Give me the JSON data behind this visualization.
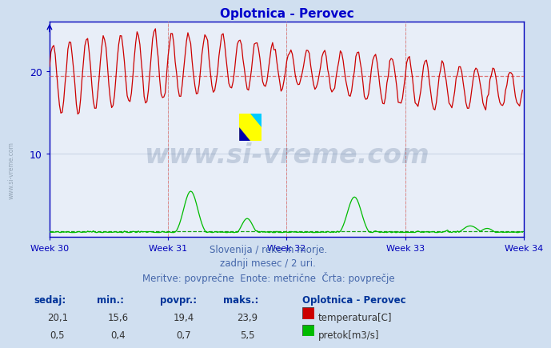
{
  "title": "Oplotnica - Perovec",
  "title_color": "#0000cc",
  "background_color": "#d0dff0",
  "plot_bg_color": "#e8eef8",
  "grid_color": "#b8c8dc",
  "axis_color": "#0000bb",
  "tick_color": "#0000bb",
  "xlabel_weeks": [
    "Week 30",
    "Week 31",
    "Week 32",
    "Week 33",
    "Week 34"
  ],
  "week_positions": [
    0,
    84,
    168,
    252,
    336
  ],
  "xlim": [
    0,
    336
  ],
  "ylim": [
    0,
    26
  ],
  "yticks": [
    10,
    20
  ],
  "temp_min": 15.6,
  "temp_max": 23.9,
  "temp_avg": 19.4,
  "temp_current": 20.1,
  "flow_min": 0.4,
  "flow_max": 5.5,
  "flow_avg": 0.7,
  "flow_current": 0.5,
  "temp_color": "#cc0000",
  "flow_color": "#00bb00",
  "avg_line_color": "#dd6666",
  "flow_avg_color": "#009900",
  "vline_color": "#dd8888",
  "subtitle1": "Slovenija / reke in morje.",
  "subtitle2": "zadnji mesec / 2 uri.",
  "subtitle3": "Meritve: povprečne  Enote: metrične  Črta: povprečje",
  "subtitle_color": "#4466aa",
  "legend_title": "Oplotnica - Perovec",
  "label_sedaj": "sedaj:",
  "label_min": "min.:",
  "label_povpr": "povpr.:",
  "label_maks": "maks.:",
  "label_temperatura": "temperatura[C]",
  "label_pretok": "pretok[m3/s]",
  "watermark_text": "www.si-vreme.com",
  "watermark_color": "#1a3a6a",
  "watermark_alpha": 0.18,
  "watermark_fontsize": 24,
  "n_points": 336,
  "period": 12,
  "side_watermark": "www.si-vreme.com",
  "side_watermark_color": "#8899aa",
  "col_color": "#003399",
  "val_color": "#333333"
}
